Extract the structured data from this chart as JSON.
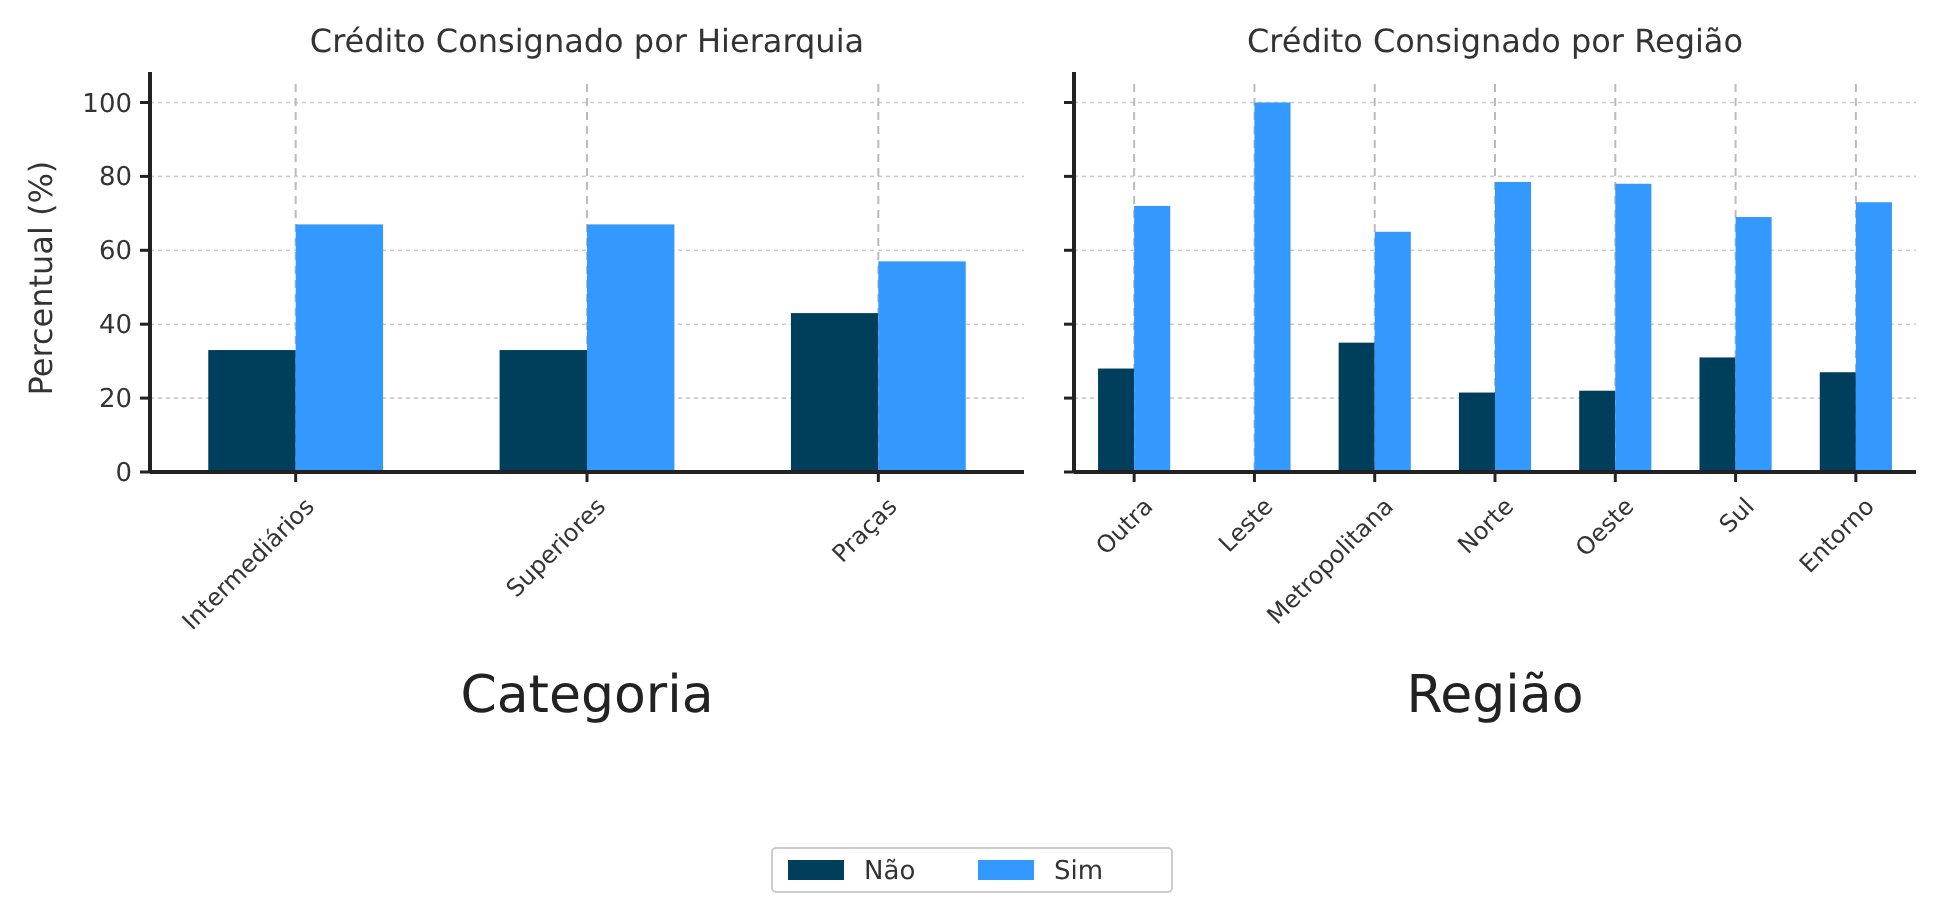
{
  "chart_data": [
    {
      "type": "bar",
      "title": "Crédito Consignado por Hierarquia",
      "xlabel": "Categoria",
      "ylabel": "Percentual (%)",
      "categories": [
        "Intermediários",
        "Superiores",
        "Praças"
      ],
      "series": [
        {
          "name": "Não",
          "color": "#003f5c",
          "values": [
            33,
            33,
            43
          ]
        },
        {
          "name": "Sim",
          "color": "#3399ff",
          "values": [
            67,
            67,
            57
          ]
        }
      ],
      "ylim": [
        0,
        105
      ],
      "yticks": [
        0,
        20,
        40,
        60,
        80,
        100
      ],
      "grid": true,
      "legend": "bottom"
    },
    {
      "type": "bar",
      "title": "Crédito Consignado por Região",
      "xlabel": "Região",
      "categories": [
        "Outra",
        "Leste",
        "Metropolitana",
        "Norte",
        "Oeste",
        "Sul",
        "Entorno"
      ],
      "series": [
        {
          "color": "#003f5c",
          "values": [
            28,
            0,
            35,
            21.5,
            22,
            31,
            27
          ]
        },
        {
          "color": "#3399ff",
          "values": [
            72,
            100,
            65,
            78.5,
            78,
            69,
            73
          ]
        }
      ],
      "ylim": [
        0,
        105
      ],
      "yticks": [
        0,
        20,
        40,
        60,
        80,
        100
      ],
      "grid": true,
      "tick_labels": "x"
    }
  ]
}
